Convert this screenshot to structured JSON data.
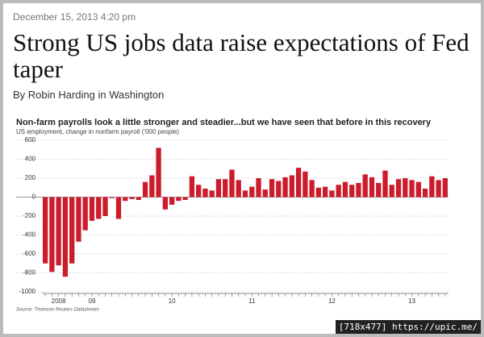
{
  "header": {
    "date": "December 15, 2013 4:20 pm",
    "headline": "Strong US jobs data raise expectations of Fed taper",
    "byline": "By Robin Harding in Washington"
  },
  "chart_data": {
    "type": "bar",
    "title": "Non-farm payrolls look a little stronger and steadier...but we have seen that before in this recovery",
    "subtitle": "US employment, change in nonfarm payroll ('000 people)",
    "source": "Source: Thomson Reuters Datastream",
    "categories": [
      null,
      null,
      "2008",
      null,
      null,
      null,
      null,
      "09",
      null,
      null,
      null,
      null,
      null,
      null,
      null,
      null,
      null,
      null,
      null,
      "10",
      null,
      null,
      null,
      null,
      null,
      null,
      null,
      null,
      null,
      null,
      null,
      "11",
      null,
      null,
      null,
      null,
      null,
      null,
      null,
      null,
      null,
      null,
      null,
      "12",
      null,
      null,
      null,
      null,
      null,
      null,
      null,
      null,
      null,
      null,
      null,
      "13",
      null,
      null,
      null,
      null,
      null
    ],
    "values": [
      -700,
      -790,
      -720,
      -840,
      -700,
      -470,
      -350,
      -250,
      -230,
      -200,
      -10,
      -230,
      -40,
      -20,
      -30,
      160,
      230,
      520,
      -130,
      -80,
      -40,
      -30,
      220,
      130,
      90,
      70,
      190,
      190,
      290,
      180,
      70,
      110,
      200,
      80,
      190,
      170,
      210,
      230,
      310,
      270,
      180,
      100,
      110,
      70,
      130,
      160,
      130,
      150,
      240,
      210,
      150,
      280,
      130,
      190,
      200,
      180,
      160,
      90,
      220,
      180,
      200
    ],
    "color": "#cc1b2b",
    "ylim": [
      -1000,
      600
    ],
    "yticks": [
      -1000,
      -800,
      -600,
      -400,
      -200,
      0,
      200,
      400,
      600
    ],
    "grid": true
  },
  "watermark": "[718x477] https://upic.me/"
}
